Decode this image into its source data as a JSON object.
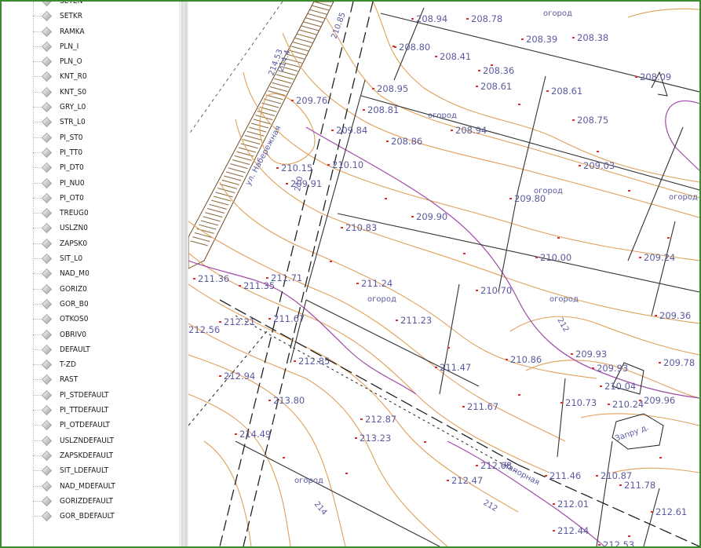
{
  "layers": [
    "SETEN",
    "SETKR",
    "RAMKA",
    "PLN_I",
    "PLN_O",
    "KNT_R0",
    "KNT_S0",
    "GRY_L0",
    "STR_L0",
    "PI_ST0",
    "PI_TT0",
    "PI_DT0",
    "PI_NU0",
    "PI_OT0",
    "TREUG0",
    "USLZN0",
    "ZAPSK0",
    "SIT_L0",
    "NAD_M0",
    "GORIZ0",
    "GOR_B0",
    "OTKOS0",
    "OBRIV0",
    "DEFAULT",
    "T-ZD",
    "RAST",
    "PI_STDEFAULT",
    "PI_TTDEFAULT",
    "PI_OTDEFAULT",
    "USLZNDEFAULT",
    "ZAPSKDEFAULT",
    "SIT_LDEFAULT",
    "NAD_MDEFAULT",
    "GORIZDEFAULT",
    "GOR_BDEFAULT"
  ],
  "map": {
    "elevations": [
      {
        "t": "208.94"
      },
      {
        "t": "208.78"
      },
      {
        "t": "208.39"
      },
      {
        "t": "208.38"
      },
      {
        "t": "208.80"
      },
      {
        "t": "208.41"
      },
      {
        "t": "208.36"
      },
      {
        "t": "208.09"
      },
      {
        "t": "208.95"
      },
      {
        "t": "208.61"
      },
      {
        "t": "208.61"
      },
      {
        "t": "209.76"
      },
      {
        "t": "208.81"
      },
      {
        "t": "208.94"
      },
      {
        "t": "208.75"
      },
      {
        "t": "209.84"
      },
      {
        "t": "208.86"
      },
      {
        "t": "210.15"
      },
      {
        "t": "210.10"
      },
      {
        "t": "209.03"
      },
      {
        "t": "209.91"
      },
      {
        "t": "209.80"
      },
      {
        "t": "209.90"
      },
      {
        "t": "210.83"
      },
      {
        "t": "210.00"
      },
      {
        "t": "209.24"
      },
      {
        "t": "211.36"
      },
      {
        "t": "211.35"
      },
      {
        "t": "211.71"
      },
      {
        "t": "211.24"
      },
      {
        "t": "210.70"
      },
      {
        "t": "212.21"
      },
      {
        "t": "211.67"
      },
      {
        "t": "211.23"
      },
      {
        "t": "209.36"
      },
      {
        "t": "212.56"
      },
      {
        "t": "210.86"
      },
      {
        "t": "209.93"
      },
      {
        "t": "209.78"
      },
      {
        "t": "209.93"
      },
      {
        "t": "212.85"
      },
      {
        "t": "211.47"
      },
      {
        "t": "210.04"
      },
      {
        "t": "212.94"
      },
      {
        "t": "210.73"
      },
      {
        "t": "210.24"
      },
      {
        "t": "209.96"
      },
      {
        "t": "213.80"
      },
      {
        "t": "211.67"
      },
      {
        "t": "214.49"
      },
      {
        "t": "212.87"
      },
      {
        "t": "213.23"
      },
      {
        "t": "211.46"
      },
      {
        "t": "210.87"
      },
      {
        "t": "212.68"
      },
      {
        "t": "212.47"
      },
      {
        "t": "211.78"
      },
      {
        "t": "212.01"
      },
      {
        "t": "212.61"
      },
      {
        "t": "212.44"
      },
      {
        "t": "212.53"
      }
    ],
    "words": [
      {
        "t": "огород"
      },
      {
        "t": "огород"
      },
      {
        "t": "огород"
      },
      {
        "t": "огород"
      },
      {
        "t": "огород"
      },
      {
        "t": "огород"
      },
      {
        "t": "огород"
      },
      {
        "t": "Напорная"
      },
      {
        "t": "Запру д."
      }
    ],
    "contour_labels": [
      {
        "t": "214.53"
      },
      {
        "t": "214.4"
      },
      {
        "t": "210.85"
      },
      {
        "t": "210"
      },
      {
        "t": "212"
      },
      {
        "t": "214"
      },
      {
        "t": "212"
      }
    ],
    "street_label": "ул. Набережная"
  }
}
